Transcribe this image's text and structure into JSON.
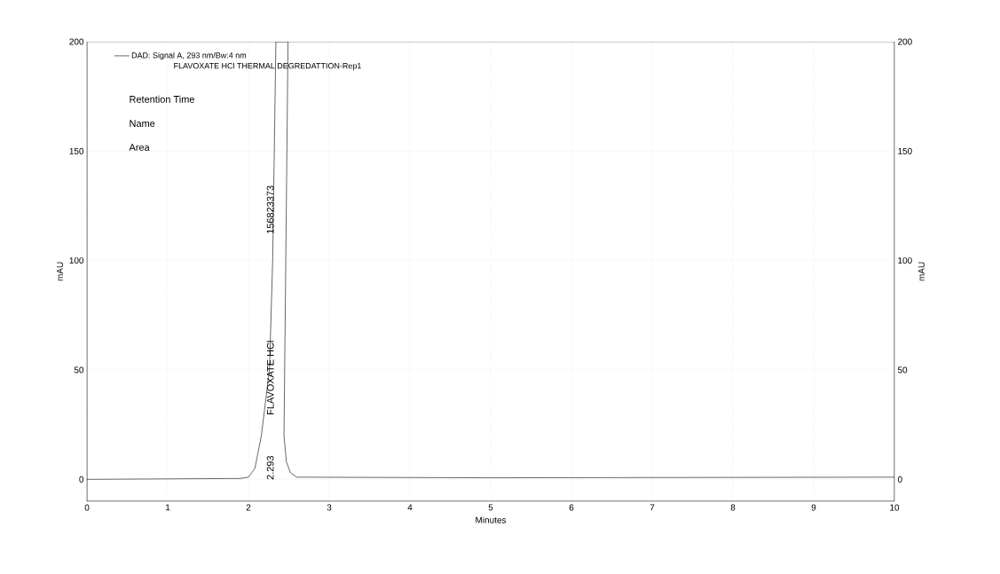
{
  "chart_data": {
    "type": "line",
    "xlabel": "Minutes",
    "ylabel": "mAU",
    "y2label": "mAU",
    "x": [
      0,
      1.9,
      2.0,
      2.08,
      2.16,
      2.26,
      2.3,
      2.34,
      2.49,
      2.44,
      2.47,
      2.52,
      2.6,
      5.0,
      10.0
    ],
    "series": [
      {
        "name": "DAD: Signal A, 293 nm/Bw:4 nm",
        "color": "#000000",
        "values": [
          0,
          0.4,
          1,
          5,
          20,
          50,
          100,
          200,
          200,
          20,
          8,
          3,
          1,
          0.7,
          1
        ]
      }
    ],
    "xlim": [
      0,
      10
    ],
    "xticks": [
      0,
      1,
      2,
      3,
      4,
      5,
      6,
      7,
      8,
      9,
      10
    ],
    "ylim": [
      -10,
      200
    ],
    "yticks": [
      0,
      50,
      100,
      150,
      200
    ],
    "y2lim": [
      -10,
      200
    ],
    "y2ticks": [
      0,
      50,
      100,
      150,
      200
    ],
    "grid": true,
    "legend": "top left",
    "annotations": [
      "FLAVOXATE HCl THERMAL DEGREDATTION-Rep1",
      "Retention Time",
      "Name",
      "Area",
      "2.293",
      "FLAVOXATE HCl",
      "156823373"
    ]
  }
}
